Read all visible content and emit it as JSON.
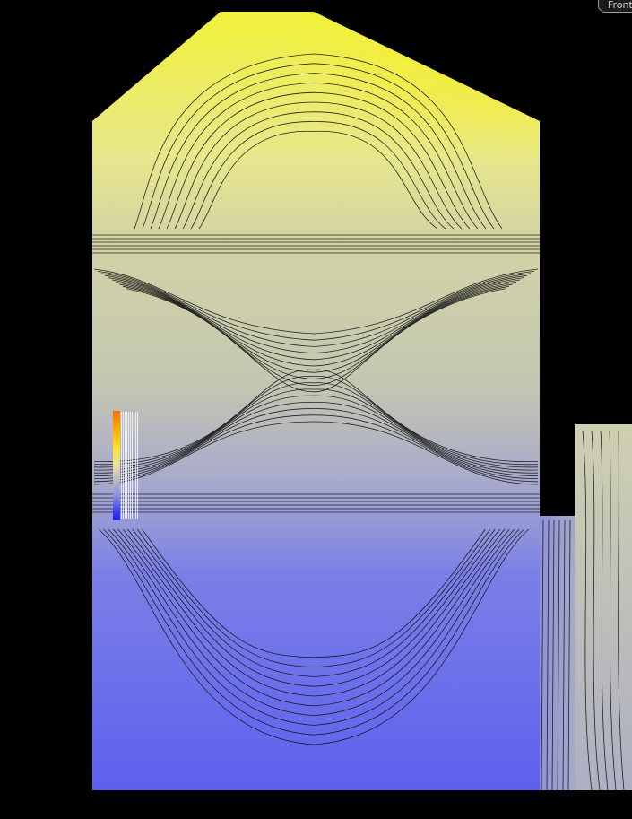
{
  "viewport": {
    "view_label": "Front"
  },
  "legend": {
    "colors": [
      "#ff6a00",
      "#ffe030",
      "#e8e3a0",
      "#b8b7c6",
      "#8d8fe0",
      "#1a1aff"
    ]
  }
}
